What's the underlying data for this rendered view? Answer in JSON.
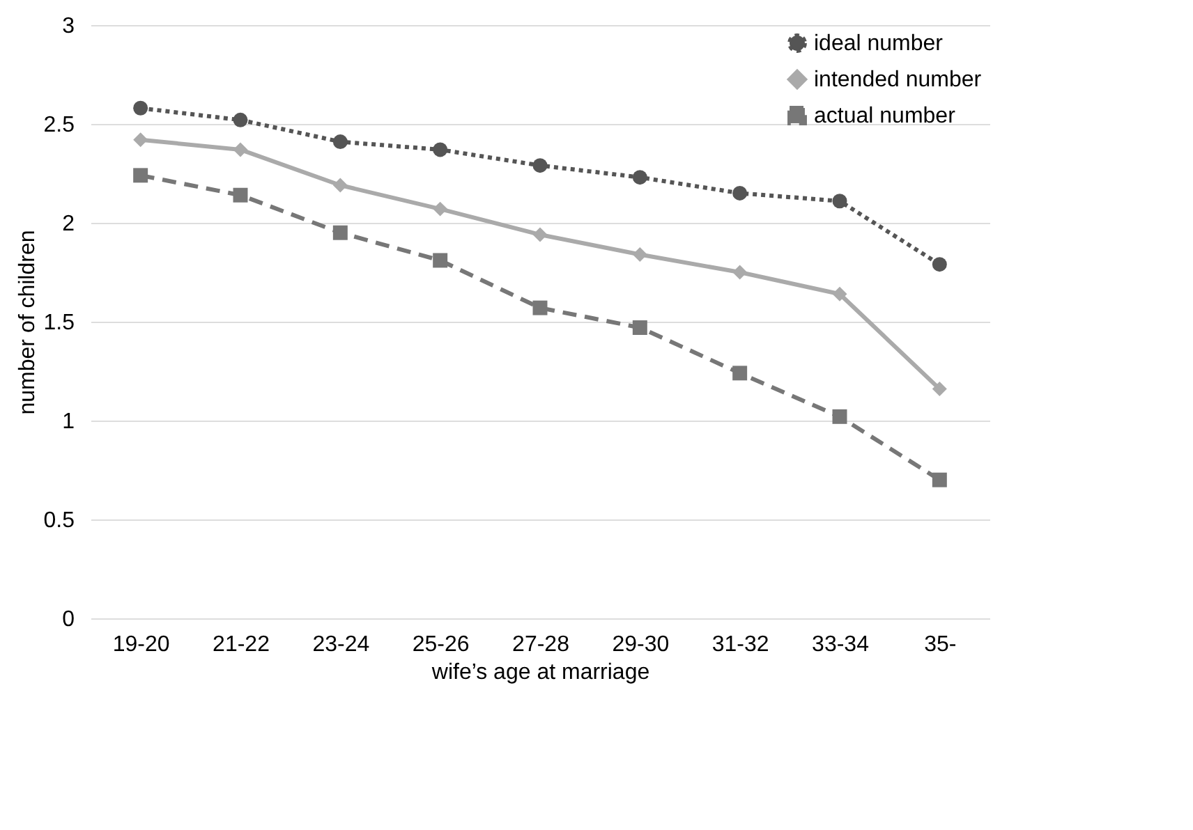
{
  "chart_data": {
    "type": "line",
    "xlabel": "wife’s age at marriage",
    "ylabel": "number of children",
    "categories": [
      "19-20",
      "21-22",
      "23-24",
      "25-26",
      "27-28",
      "29-30",
      "31-32",
      "33-34",
      "35-"
    ],
    "series": [
      {
        "name": "ideal number",
        "color": "#555555",
        "marker": "circle",
        "line_style": "dotted",
        "values": [
          2.58,
          2.52,
          2.41,
          2.37,
          2.29,
          2.23,
          2.15,
          2.11,
          1.79
        ]
      },
      {
        "name": "intended number",
        "color": "#aaaaaa",
        "marker": "diamond",
        "line_style": "solid",
        "values": [
          2.42,
          2.37,
          2.19,
          2.07,
          1.94,
          1.84,
          1.75,
          1.64,
          1.16
        ]
      },
      {
        "name": "actual number",
        "color": "#777777",
        "marker": "square",
        "line_style": "dashed",
        "values": [
          2.24,
          2.14,
          1.95,
          1.81,
          1.57,
          1.47,
          1.24,
          1.02,
          0.7
        ]
      }
    ],
    "ylim": [
      0,
      3
    ],
    "yticks": [
      0,
      0.5,
      1,
      1.5,
      2,
      2.5,
      3
    ],
    "grid": "y",
    "legend": "top right"
  }
}
